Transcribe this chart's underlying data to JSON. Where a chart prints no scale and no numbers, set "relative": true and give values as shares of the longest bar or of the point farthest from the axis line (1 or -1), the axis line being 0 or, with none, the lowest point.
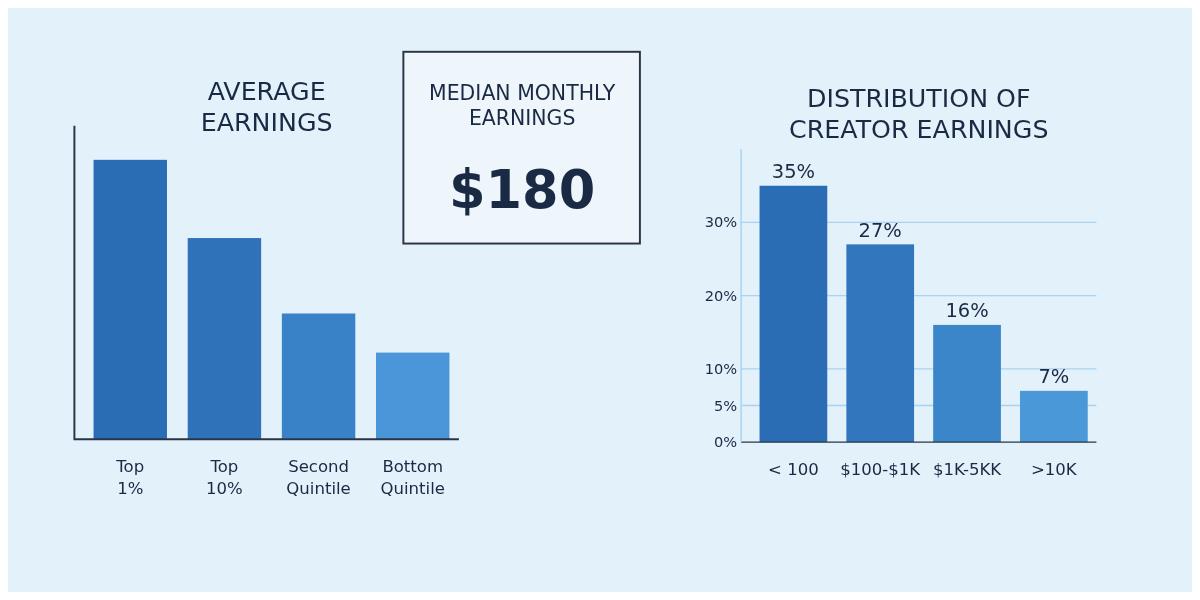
{
  "chart_data": [
    {
      "type": "bar",
      "title": "AVERAGE EARNINGS",
      "categories": [
        "Top 1%",
        "Top 10%",
        "Second Quintile",
        "Bottom Quintile"
      ],
      "values": [
        1,
        0.72,
        0.45,
        0.31
      ],
      "relative": true,
      "colors": [
        "#2a6db5",
        "#2f72ba",
        "#3a82c8",
        "#4a96d8"
      ]
    },
    {
      "type": "other",
      "title": "MEDIAN MONTHLY EARNINGS",
      "annotations": [
        "$180"
      ]
    },
    {
      "type": "bar",
      "title": "DISTRIBUTION OF CREATOR EARNINGS",
      "categories": [
        "< 100",
        "$100-$1K",
        "$1K-5KK",
        ">10K"
      ],
      "values": [
        35,
        27,
        16,
        7
      ],
      "colors": [
        "#2a6db5",
        "#3277bd",
        "#3a86c9",
        "#4a98d8"
      ],
      "ylim": [
        0,
        40
      ],
      "yticks": [
        {
          "value": 0,
          "label": "0%"
        },
        {
          "value": 5,
          "label": "5%"
        },
        {
          "value": 10,
          "label": "10%"
        },
        {
          "value": 20,
          "label": "20%"
        },
        {
          "value": 30,
          "label": "30%"
        }
      ],
      "grid": "y",
      "value_labels": [
        "35%",
        "27%",
        "16%",
        "7%"
      ],
      "tick_labels": "xy"
    }
  ]
}
